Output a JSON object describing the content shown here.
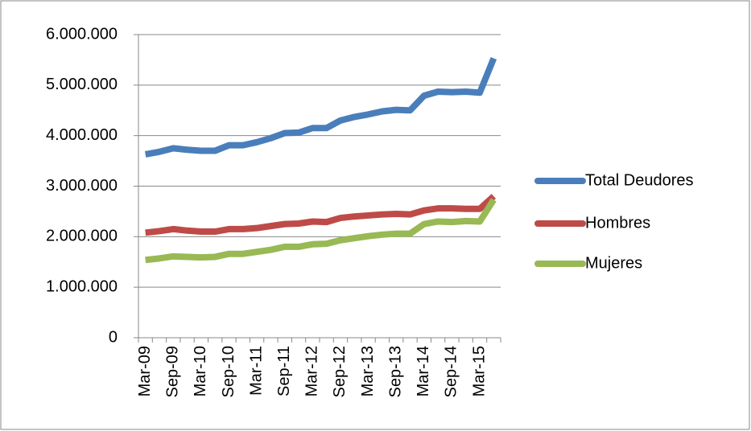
{
  "chart_data": {
    "type": "line",
    "categories": [
      "Mar-09",
      null,
      "Sep-09",
      null,
      "Mar-10",
      null,
      "Sep-10",
      null,
      "Mar-11",
      null,
      "Sep-11",
      null,
      "Mar-12",
      null,
      "Sep-12",
      null,
      "Mar-13",
      null,
      "Sep-13",
      null,
      "Mar-14",
      null,
      "Sep-14",
      null,
      "Mar-15",
      null
    ],
    "series": [
      {
        "name": "Total Deudores",
        "color": "#4a7ebb",
        "values": [
          3630000,
          3680000,
          3750000,
          3720000,
          3700000,
          3700000,
          3810000,
          3810000,
          3870000,
          3950000,
          4050000,
          4060000,
          4150000,
          4150000,
          4300000,
          4370000,
          4420000,
          4480000,
          4510000,
          4500000,
          4790000,
          4870000,
          4860000,
          4870000,
          4850000,
          5530000
        ]
      },
      {
        "name": "Hombres",
        "color": "#be4b48",
        "values": [
          2080000,
          2110000,
          2150000,
          2120000,
          2100000,
          2100000,
          2150000,
          2150000,
          2170000,
          2210000,
          2250000,
          2260000,
          2300000,
          2290000,
          2370000,
          2400000,
          2420000,
          2440000,
          2450000,
          2440000,
          2520000,
          2560000,
          2560000,
          2550000,
          2550000,
          2800000
        ]
      },
      {
        "name": "Mujeres",
        "color": "#98b954",
        "values": [
          1540000,
          1570000,
          1610000,
          1600000,
          1590000,
          1600000,
          1660000,
          1660000,
          1700000,
          1740000,
          1800000,
          1800000,
          1850000,
          1860000,
          1930000,
          1970000,
          2010000,
          2040000,
          2060000,
          2060000,
          2250000,
          2300000,
          2290000,
          2310000,
          2300000,
          2730000
        ]
      }
    ],
    "ylim": [
      0,
      6000000
    ],
    "yticks": [
      0,
      {
        "value": 1000000,
        "label": "1.000.000"
      },
      {
        "value": 2000000,
        "label": "2.000.000"
      },
      {
        "value": 3000000,
        "label": "3.000.000"
      },
      {
        "value": 4000000,
        "label": "4.000.000"
      },
      {
        "value": 5000000,
        "label": "5.000.000"
      },
      {
        "value": 6000000,
        "label": "6.000.000"
      }
    ],
    "grid": true,
    "legend": "right"
  }
}
